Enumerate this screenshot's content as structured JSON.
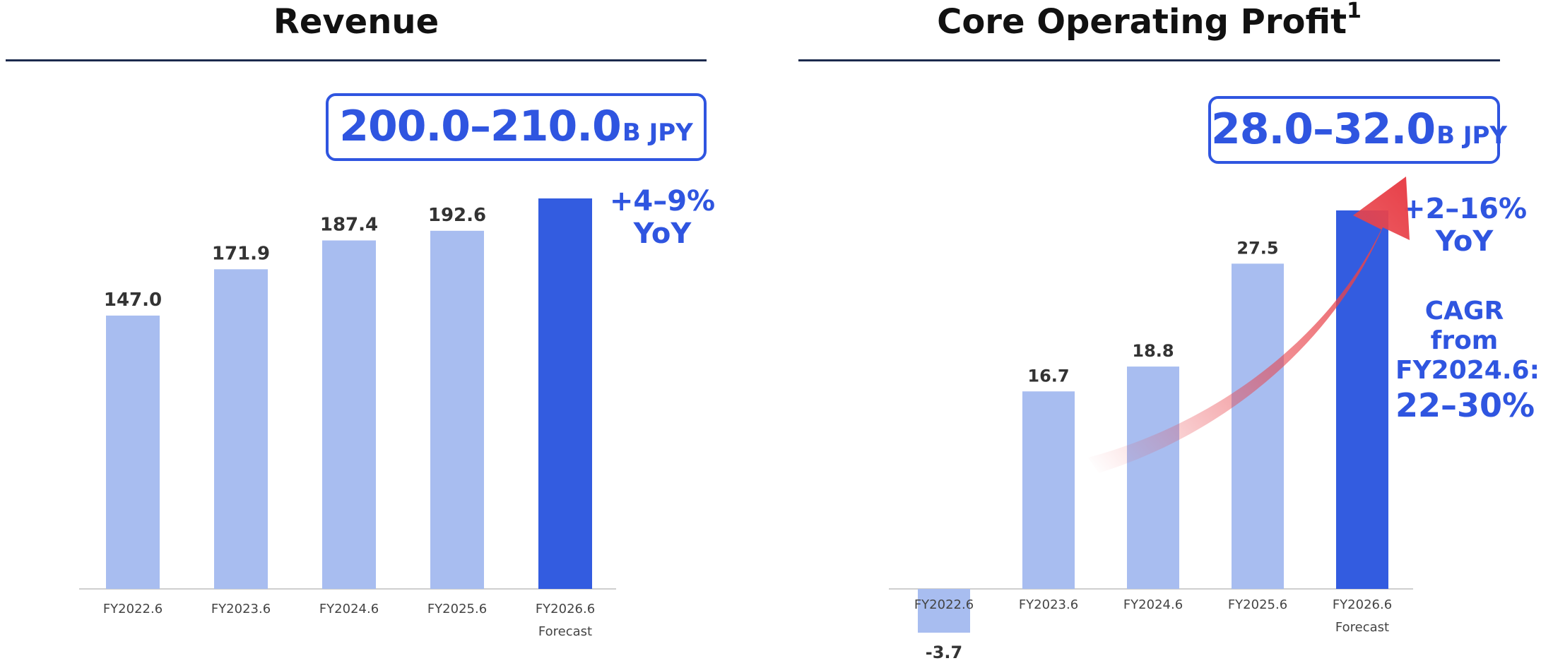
{
  "colors": {
    "bar_actual": "#a8bdf0",
    "bar_forecast": "#335ce0",
    "accent": "#2f55e0",
    "label_text": "#333333",
    "tick_text": "#444444",
    "rule": "#1c2a4d",
    "arrow": "#e8434b"
  },
  "left": {
    "title": "Revenue",
    "range_value": "200.0–210.0",
    "range_unit": "B JPY",
    "yoy_pct": "+4–9%",
    "yoy_suffix": "YoY"
  },
  "right": {
    "title": "Core Operating Profit",
    "title_sup": "1",
    "range_value": "28.0–32.0",
    "range_unit": "B JPY",
    "yoy_pct": "+2–16%",
    "yoy_suffix": "YoY",
    "cagr_line1": "CAGR",
    "cagr_line2": "from",
    "cagr_line3": "FY2024.6:",
    "cagr_value": "22–30%"
  },
  "chart_data": [
    {
      "type": "bar",
      "title": "Revenue",
      "categories": [
        "FY2022.6",
        "FY2023.6",
        "FY2024.6",
        "FY2025.6",
        "FY2026.6"
      ],
      "sublabels": [
        "",
        "",
        "",
        "",
        "Forecast"
      ],
      "values": [
        147.0,
        171.9,
        187.4,
        192.6,
        210.0
      ],
      "value_labels": [
        "147.0",
        "171.9",
        "187.4",
        "192.6",
        ""
      ],
      "forecast_range": [
        200.0,
        210.0
      ],
      "unit": "B JPY",
      "ylim": [
        0,
        210
      ],
      "grid": false
    },
    {
      "type": "bar",
      "title": "Core Operating Profit",
      "categories": [
        "FY2022.6",
        "FY2023.6",
        "FY2024.6",
        "FY2025.6",
        "FY2026.6"
      ],
      "sublabels": [
        "",
        "",
        "",
        "",
        "Forecast"
      ],
      "values": [
        -3.7,
        16.7,
        18.8,
        27.5,
        32.0
      ],
      "value_labels": [
        "-3.7",
        "16.7",
        "18.8",
        "27.5",
        ""
      ],
      "forecast_range": [
        28.0,
        32.0
      ],
      "unit": "B JPY",
      "ylim": [
        -3.7,
        32.0
      ],
      "grid": false
    }
  ]
}
